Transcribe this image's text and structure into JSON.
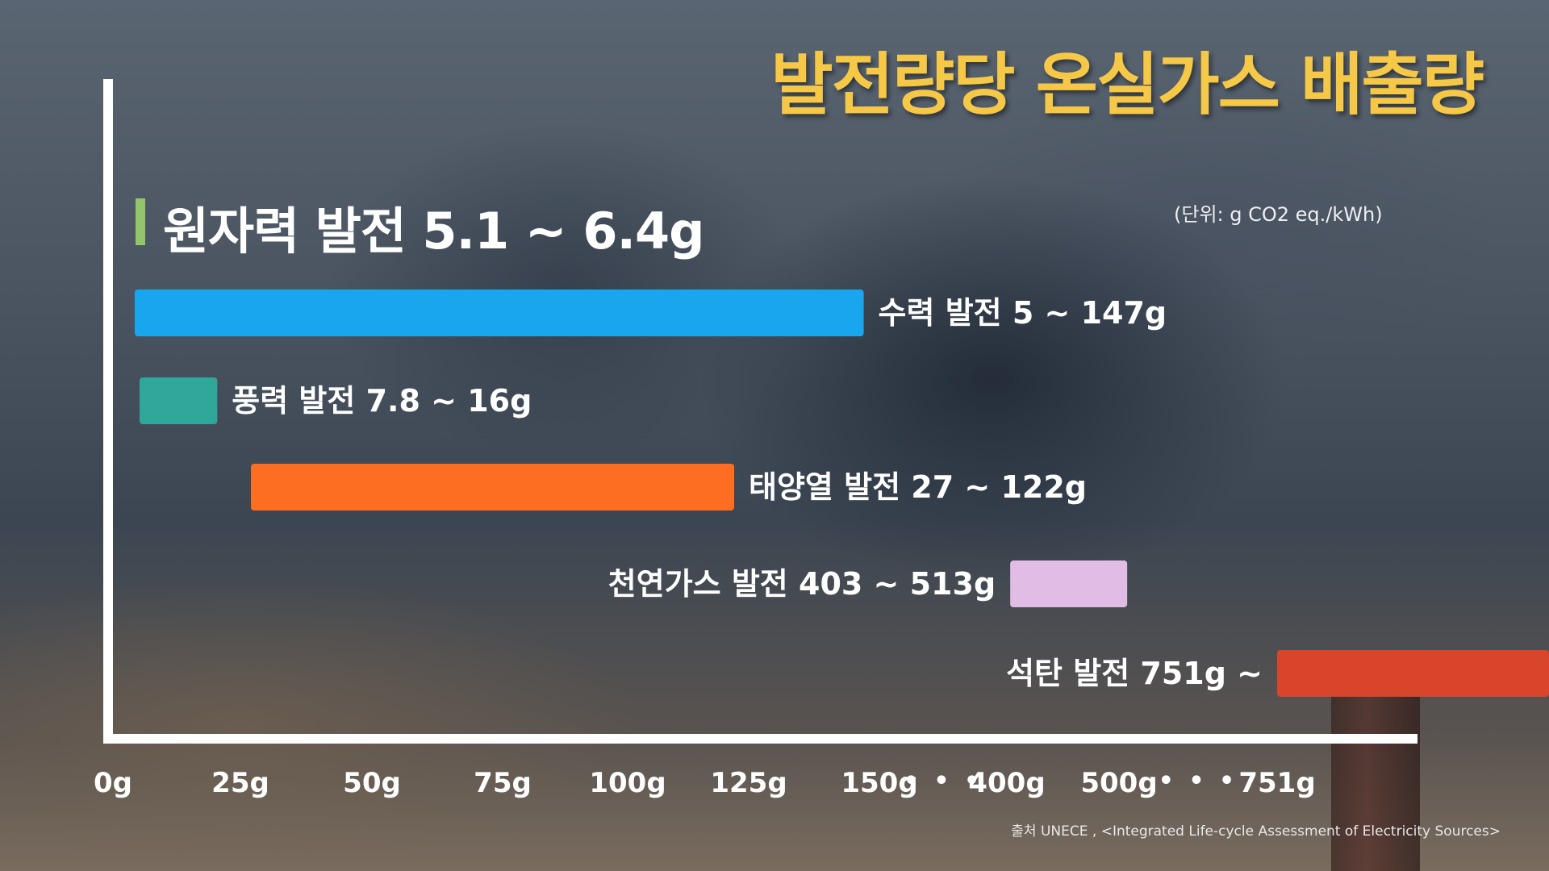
{
  "title": "발전량당 온실가스 배출량",
  "unit": "(단위: g CO2 eq./kWh)",
  "source": "출처 UNECE , <Integrated Life-cycle Assessment of Electricity Sources>",
  "nuclear": {
    "label": "원자력 발전 5.1 ~ 6.4g",
    "marker_color": "#93c66a",
    "min": 5.1,
    "max": 6.4
  },
  "chart_data": {
    "type": "bar",
    "orientation": "horizontal-range",
    "title": "발전량당 온실가스 배출량",
    "unit": "g CO2 eq./kWh",
    "x_ticks": [
      "0g",
      "25g",
      "50g",
      "75g",
      "100g",
      "125g",
      "150g",
      "400g",
      "500g",
      "751g"
    ],
    "x_tick_values": [
      0,
      25,
      50,
      75,
      100,
      125,
      150,
      400,
      500,
      751
    ],
    "x_breaks": [
      "150g-400g",
      "500g-751g"
    ],
    "grid": false,
    "series": [
      {
        "label": "수력 발전 5 ~ 147g",
        "min": 5,
        "max": 147,
        "color": "#18a7ef",
        "label_position": "right"
      },
      {
        "label": "풍력 발전 7.8 ~ 16g",
        "min": 7.8,
        "max": 16,
        "color": "#2fa89a",
        "label_position": "right"
      },
      {
        "label": "태양열 발전 27 ~ 122g",
        "min": 27,
        "max": 122,
        "color": "#fd6e22",
        "label_position": "right"
      },
      {
        "label": "천연가스 발전 403 ~ 513g",
        "min": 403,
        "max": 513,
        "color": "#e1bde6",
        "label_position": "left"
      },
      {
        "label": "석탄 발전 751g ~",
        "min": 751,
        "max": null,
        "color": "#d8452a",
        "label_position": "left"
      }
    ],
    "break_marker": "• • •"
  }
}
